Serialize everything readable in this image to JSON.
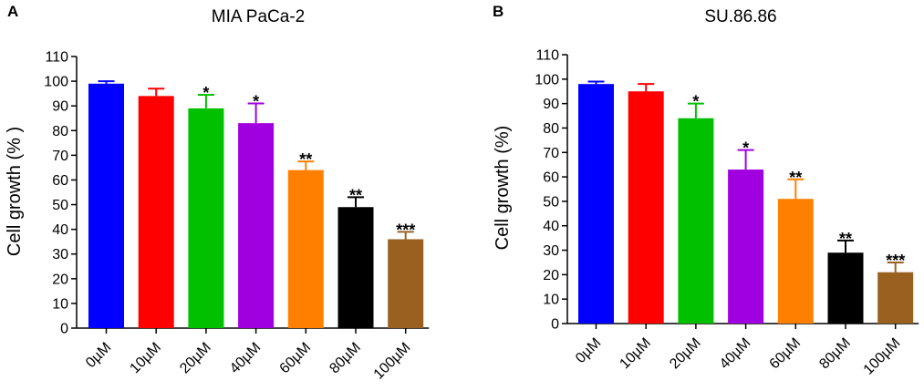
{
  "chart_data": [
    {
      "type": "bar",
      "panel": "A",
      "title": "MIA PaCa-2",
      "xlabel": "",
      "ylabel": "Cell growth (% )",
      "ylim": [
        0,
        110
      ],
      "yticks": [
        0,
        10,
        20,
        30,
        40,
        50,
        60,
        70,
        80,
        90,
        100,
        110
      ],
      "categories": [
        "0µM",
        "10µM",
        "20µM",
        "40µM",
        "60µM",
        "80µM",
        "100µM"
      ],
      "values": [
        99,
        94,
        89,
        83,
        64,
        49,
        36
      ],
      "errors": [
        1,
        3,
        5.5,
        8,
        3.5,
        4,
        3
      ],
      "significance": [
        "",
        "",
        "*",
        "*",
        "**",
        "**",
        "***"
      ],
      "colors": [
        "#0000ff",
        "#ff0000",
        "#00c000",
        "#a000e0",
        "#ff8000",
        "#000000",
        "#996020"
      ]
    },
    {
      "type": "bar",
      "panel": "B",
      "title": "SU.86.86",
      "xlabel": "",
      "ylabel": "Cell growth (%)",
      "ylim": [
        0,
        110
      ],
      "yticks": [
        0,
        10,
        20,
        30,
        40,
        50,
        60,
        70,
        80,
        90,
        100,
        110
      ],
      "categories": [
        "0µM",
        "10µM",
        "20µM",
        "40µM",
        "60µM",
        "80µM",
        "100µM"
      ],
      "values": [
        98,
        95,
        84,
        63,
        51,
        29,
        21
      ],
      "errors": [
        1,
        3,
        6,
        8,
        8,
        5,
        4
      ],
      "significance": [
        "",
        "",
        "*",
        "*",
        "**",
        "**",
        "***"
      ],
      "colors": [
        "#0000ff",
        "#ff0000",
        "#00c000",
        "#a000e0",
        "#ff8000",
        "#000000",
        "#996020"
      ]
    }
  ]
}
